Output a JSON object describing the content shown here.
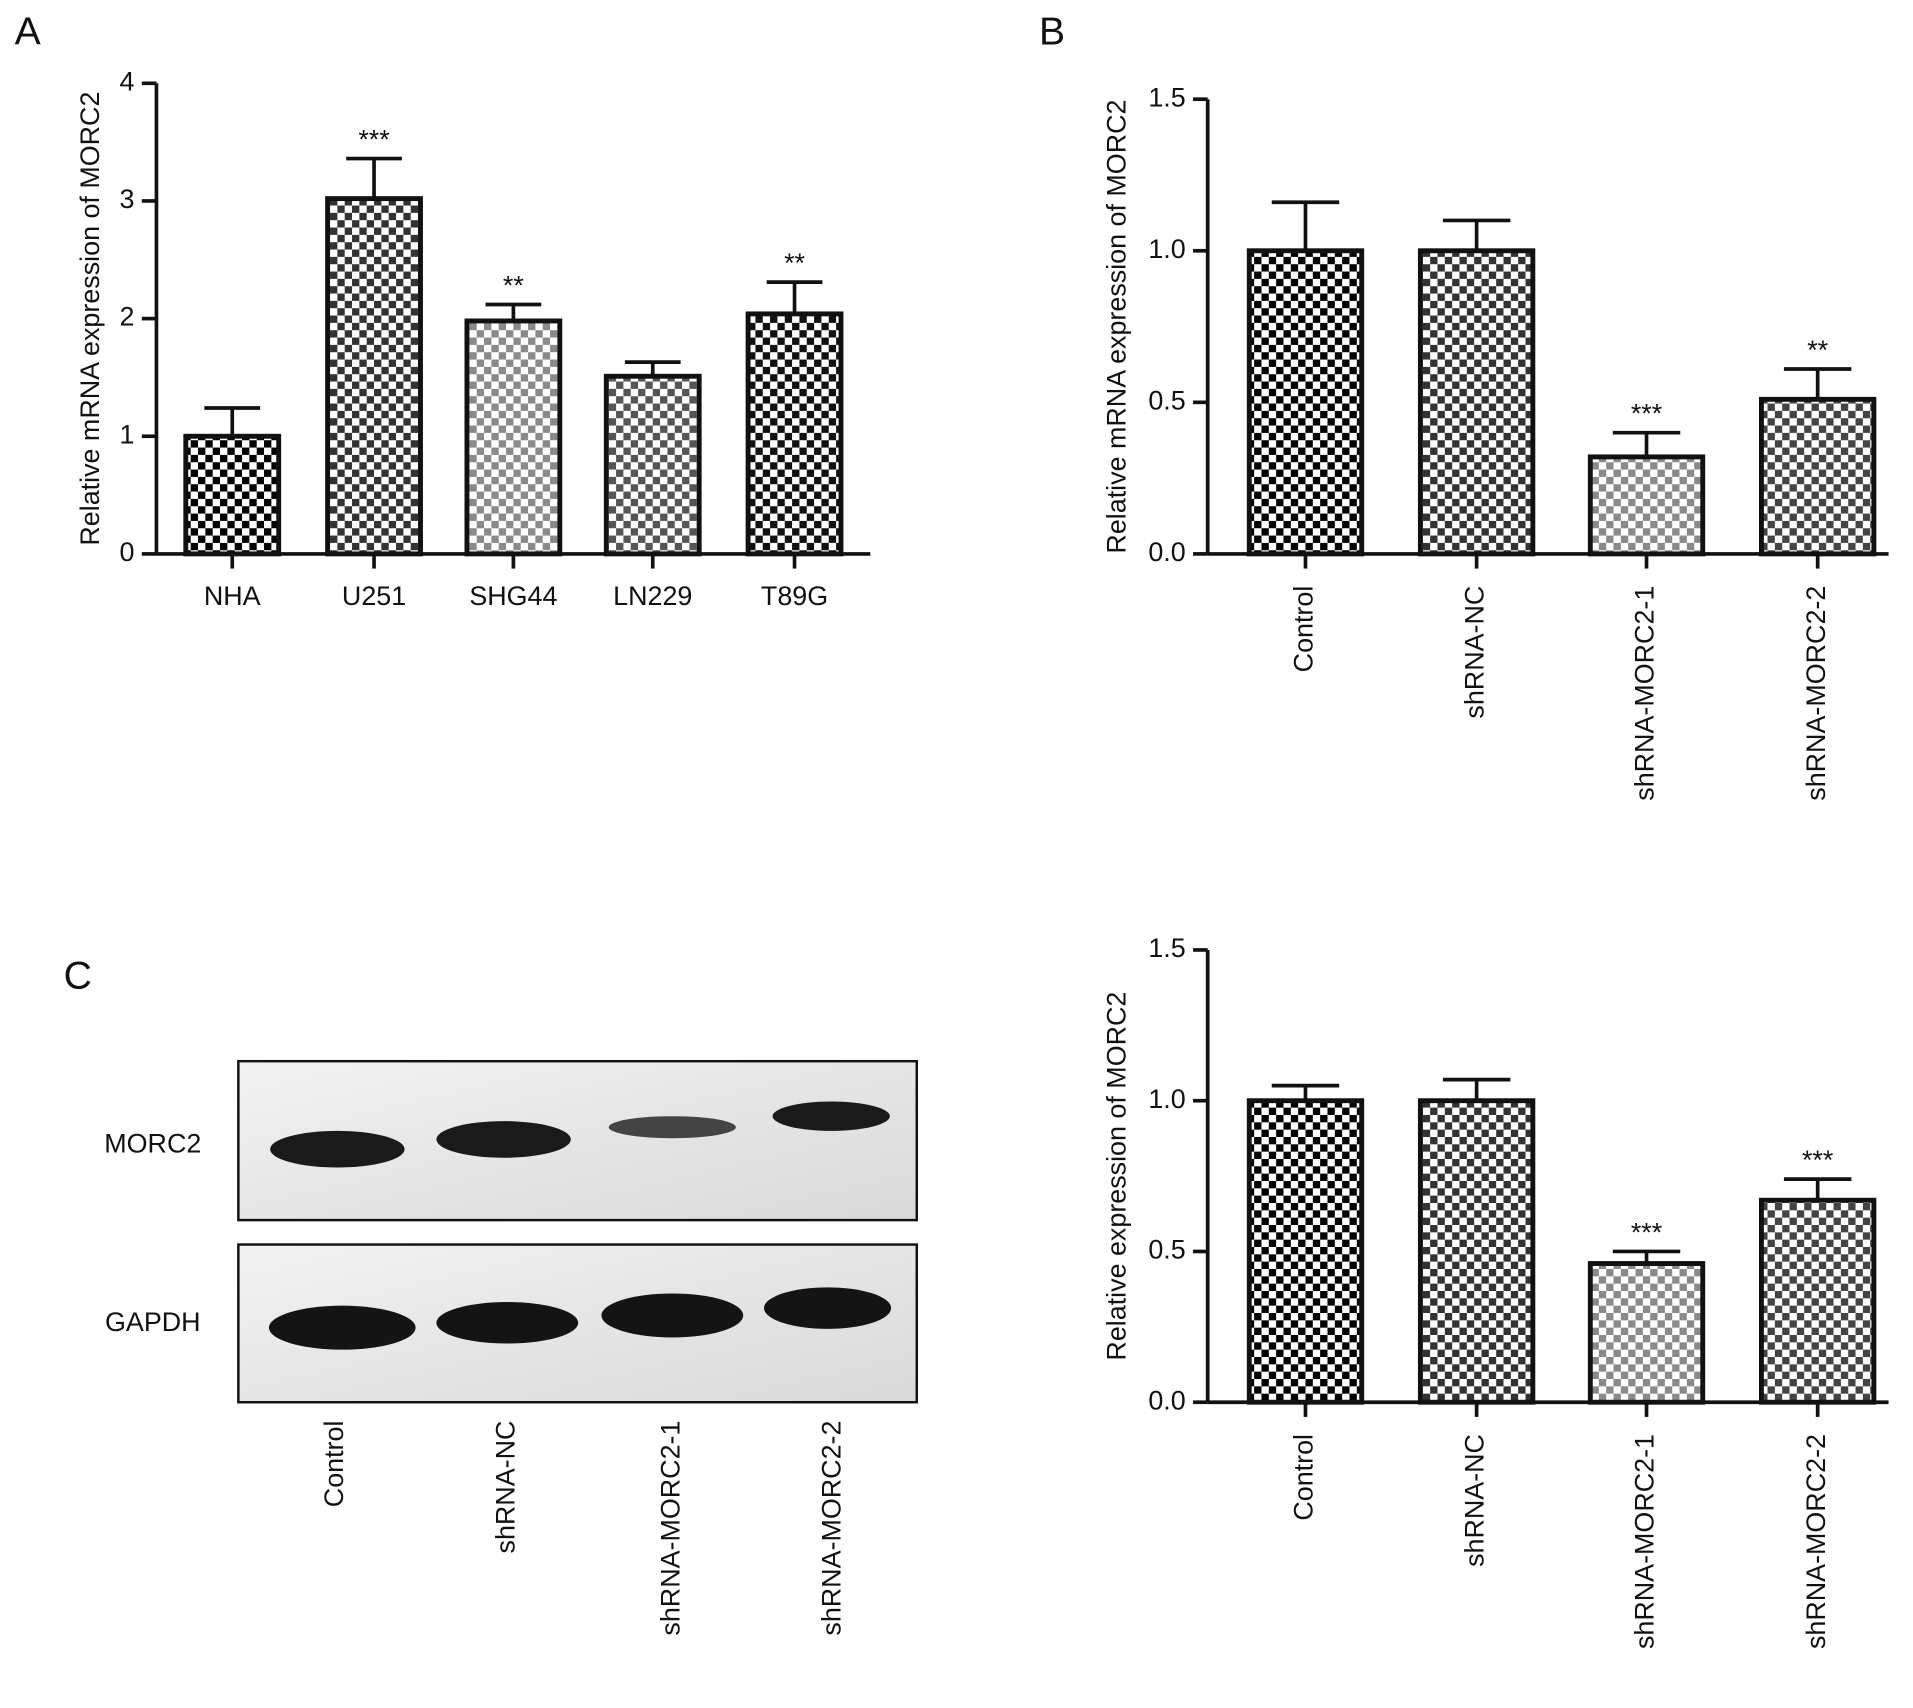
{
  "chart_data": [
    {
      "type": "bar",
      "panel": "A",
      "ylabel": "Relative mRNA expression of MORC2",
      "categories": [
        "NHA",
        "U251",
        "SHG44",
        "LN229",
        "T89G"
      ],
      "values": [
        1.0,
        3.02,
        1.98,
        1.51,
        2.04
      ],
      "errors": [
        0.24,
        0.34,
        0.14,
        0.12,
        0.27
      ],
      "annotations": [
        null,
        "***",
        "**",
        null,
        "**"
      ],
      "colors": [
        "#000000",
        "#333333",
        "#8a8a8a",
        "#555555",
        "#111111"
      ],
      "ylim": [
        0,
        4
      ],
      "yticks": [
        0,
        1,
        2,
        3,
        4
      ]
    },
    {
      "type": "bar",
      "panel": "B",
      "ylabel": "Relative mRNA expression of MORC2",
      "categories": [
        "Control",
        "shRNA-NC",
        "shRNA-MORC2-1",
        "shRNA-MORC2-2"
      ],
      "values": [
        1.0,
        1.0,
        0.32,
        0.51
      ],
      "errors": [
        0.16,
        0.1,
        0.08,
        0.1
      ],
      "annotations": [
        null,
        null,
        "***",
        "**"
      ],
      "colors": [
        "#000000",
        "#333333",
        "#8a8a8a",
        "#444444"
      ],
      "ylim": [
        0,
        1.5
      ],
      "yticks": [
        {
          "value": 0,
          "label": "0.0"
        },
        {
          "value": 0.5,
          "label": "0.5"
        },
        {
          "value": 1,
          "label": "1.0"
        },
        {
          "value": 1.5,
          "label": "1.5"
        }
      ]
    },
    {
      "type": "bar",
      "ylabel": "Relative expression of MORC2",
      "categories": [
        "Control",
        "shRNA-NC",
        "shRNA-MORC2-1",
        "shRNA-MORC2-2"
      ],
      "values": [
        1.0,
        1.0,
        0.46,
        0.67
      ],
      "errors": [
        0.05,
        0.07,
        0.04,
        0.07
      ],
      "annotations": [
        null,
        null,
        "***",
        "***"
      ],
      "colors": [
        "#000000",
        "#333333",
        "#8a8a8a",
        "#444444"
      ],
      "ylim": [
        0,
        1.5
      ],
      "yticks": [
        {
          "value": 0,
          "label": "0.0"
        },
        {
          "value": 0.5,
          "label": "0.5"
        },
        {
          "value": 1,
          "label": "1.0"
        },
        {
          "value": 1.5,
          "label": "1.5"
        }
      ]
    }
  ],
  "blot": {
    "panel": "C",
    "rows": [
      "MORC2",
      "GAPDH"
    ],
    "lanes": [
      "Control",
      "shRNA-NC",
      "shRNA-MORC2-1",
      "shRNA-MORC2-2"
    ]
  }
}
